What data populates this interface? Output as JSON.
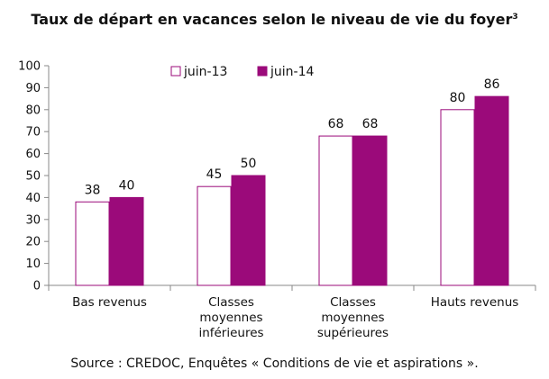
{
  "chart_data": {
    "type": "bar",
    "title": "Taux de départ en vacances selon le niveau de vie du foyer",
    "title_note": "3",
    "categories": [
      [
        "Bas revenus"
      ],
      [
        "Classes",
        "moyennes",
        "inférieures"
      ],
      [
        "Classes",
        "moyennes",
        "supérieures"
      ],
      [
        "Hauts revenus"
      ]
    ],
    "series": [
      {
        "name": "juin-13",
        "values": [
          38,
          45,
          68,
          80
        ],
        "color": "#ffffff",
        "stroke": "#9b0a7a"
      },
      {
        "name": "juin-14",
        "values": [
          40,
          50,
          68,
          86
        ],
        "color": "#9b0a7a",
        "stroke": "#9b0a7a"
      }
    ],
    "value_labels": [
      [
        "38",
        "45",
        "68",
        "80"
      ],
      [
        "40",
        "50",
        "68",
        "86"
      ]
    ],
    "y_ticks": [
      "0",
      "10",
      "20",
      "30",
      "40",
      "50",
      "60",
      "70",
      "80",
      "90",
      "100"
    ],
    "ylim": [
      0,
      100
    ],
    "xlabel": "",
    "ylabel": "",
    "grid": false,
    "legend_position": "top-left",
    "axis_color": "#888888"
  },
  "source": "Source : CREDOC, Enquêtes « Conditions de vie et aspirations »."
}
